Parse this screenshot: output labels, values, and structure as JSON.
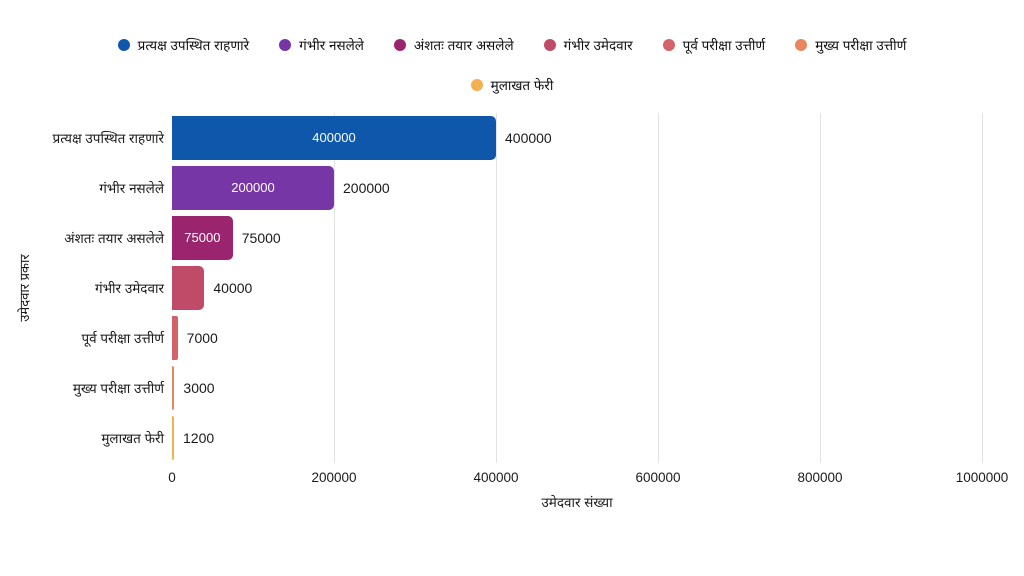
{
  "chart_data": {
    "type": "bar",
    "orientation": "horizontal",
    "title": "",
    "xlabel": "उमेदवार संख्या",
    "ylabel": "उमेदवार प्रकार",
    "categories": [
      "प्रत्यक्ष उपस्थित राहणारे",
      "गंभीर नसलेले",
      "अंशतः तयार असलेले",
      "गंभीर उमेदवार",
      "पूर्व परीक्षा उत्तीर्ण",
      "मुख्य परीक्षा उत्तीर्ण",
      "मुलाखत फेरी"
    ],
    "values": [
      400000,
      200000,
      75000,
      40000,
      7000,
      3000,
      1200
    ],
    "value_labels": [
      "400000",
      "200000",
      "75000",
      "40000",
      "7000",
      "3000",
      "1200"
    ],
    "bar_colors": [
      "#0e57ab",
      "#7636a5",
      "#9a256e",
      "#c04b69",
      "#d2636a",
      "#e8875f",
      "#f3b052"
    ],
    "xlim": [
      0,
      1000000
    ],
    "x_tick_labels": [
      "0",
      "200000",
      "400000",
      "600000",
      "800000",
      "1000000"
    ],
    "grid": "vertical",
    "legend_position": "top",
    "legend": {
      "items": [
        {
          "label": "प्रत्यक्ष उपस्थित राहणारे",
          "color": "#0e57ab"
        },
        {
          "label": "गंभीर नसलेले",
          "color": "#7636a5"
        },
        {
          "label": "अंशतः तयार असलेले",
          "color": "#9a256e"
        },
        {
          "label": "गंभीर उमेदवार",
          "color": "#c04b69"
        },
        {
          "label": "पूर्व परीक्षा उत्तीर्ण",
          "color": "#d2636a"
        },
        {
          "label": "मुख्य परीक्षा उत्तीर्ण",
          "color": "#e8875f"
        },
        {
          "label": "मुलाखत फेरी",
          "color": "#f3b052"
        }
      ]
    }
  },
  "colors": {
    "background": "#ffffff",
    "grid": "#e3e3e3",
    "text": "#1a1a1a",
    "inside_label": "#ffffff"
  }
}
